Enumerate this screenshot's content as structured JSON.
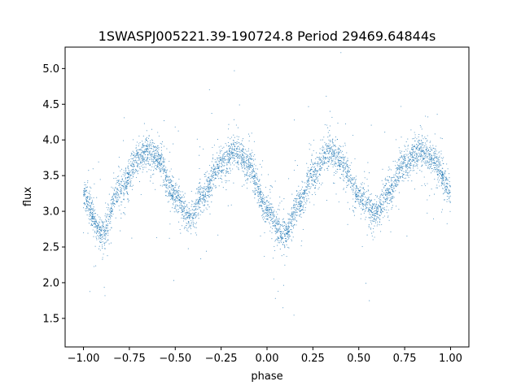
{
  "chart_data": {
    "type": "scatter",
    "title": "1SWASPJ005221.39-190724.8 Period 29469.64844s",
    "xlabel": "phase",
    "ylabel": "flux",
    "xlim": [
      -1.1,
      1.1
    ],
    "ylim": [
      1.1,
      5.3
    ],
    "xticks": [
      -1.0,
      -0.75,
      -0.5,
      -0.25,
      0.0,
      0.25,
      0.5,
      0.75,
      1.0
    ],
    "xtick_labels": [
      "−1.00",
      "−0.75",
      "−0.50",
      "−0.25",
      "0.00",
      "0.25",
      "0.50",
      "0.75",
      "1.00"
    ],
    "yticks": [
      1.5,
      2.0,
      2.5,
      3.0,
      3.5,
      4.0,
      4.5,
      5.0
    ],
    "ytick_labels": [
      "1.5",
      "2.0",
      "2.5",
      "3.0",
      "3.5",
      "4.0",
      "4.5",
      "5.0"
    ],
    "grid": false,
    "point_color": "#1f77b4",
    "series": [
      {
        "x": [
          -1.0,
          -0.9,
          -0.8,
          -0.7,
          -0.65,
          -0.6,
          -0.5,
          -0.42,
          -0.35,
          -0.25,
          -0.17,
          -0.1,
          0.0,
          0.09,
          0.18,
          0.25,
          0.34,
          0.4,
          0.5,
          0.59,
          0.66,
          0.75,
          0.83,
          0.9,
          1.0
        ],
        "y": [
          3.2,
          2.7,
          3.3,
          3.75,
          3.85,
          3.75,
          3.2,
          2.9,
          3.25,
          3.65,
          3.85,
          3.65,
          3.0,
          2.65,
          3.1,
          3.55,
          3.85,
          3.7,
          3.2,
          2.95,
          3.25,
          3.65,
          3.85,
          3.75,
          3.3
        ]
      }
    ]
  }
}
